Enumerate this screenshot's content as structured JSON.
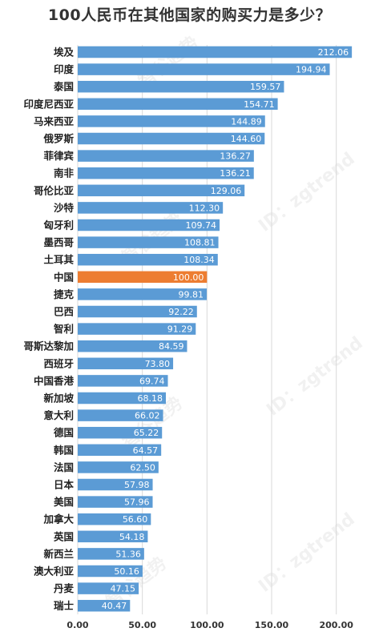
{
  "chart_data": {
    "type": "bar",
    "orientation": "horizontal",
    "title": "100人民币在其他国家的购买力是多少？",
    "categories": [
      "埃及",
      "印度",
      "泰国",
      "印度尼西亚",
      "马来西亚",
      "俄罗斯",
      "菲律宾",
      "南非",
      "哥伦比亚",
      "沙特",
      "匈牙利",
      "墨西哥",
      "土耳其",
      "中国",
      "捷克",
      "巴西",
      "智利",
      "哥斯达黎加",
      "西班牙",
      "中国香港",
      "新加坡",
      "意大利",
      "德国",
      "韩国",
      "法国",
      "日本",
      "美国",
      "加拿大",
      "英国",
      "新西兰",
      "澳大利亚",
      "丹麦",
      "瑞士"
    ],
    "values": [
      212.06,
      194.94,
      159.57,
      154.71,
      144.89,
      144.6,
      136.27,
      136.21,
      129.06,
      112.3,
      109.74,
      108.81,
      108.34,
      100.0,
      99.81,
      92.22,
      91.29,
      84.59,
      73.8,
      69.74,
      68.18,
      66.02,
      65.22,
      64.57,
      62.5,
      57.98,
      57.96,
      56.6,
      54.18,
      51.36,
      50.16,
      47.15,
      40.47
    ],
    "value_labels": [
      "212.06",
      "194.94",
      "159.57",
      "154.71",
      "144.89",
      "144.60",
      "136.27",
      "136.21",
      "129.06",
      "112.30",
      "109.74",
      "108.81",
      "108.34",
      "100.00",
      "99.81",
      "92.22",
      "91.29",
      "84.59",
      "73.80",
      "69.74",
      "68.18",
      "66.02",
      "65.22",
      "64.57",
      "62.50",
      "57.98",
      "57.96",
      "56.60",
      "54.18",
      "51.36",
      "50.16",
      "47.15",
      "40.47"
    ],
    "highlight_category": "中国",
    "xlim": [
      0,
      225
    ],
    "xticks": [
      0,
      50,
      100,
      150,
      200
    ],
    "xtick_labels": [
      "0.00",
      "50.00",
      "100.00",
      "150.00",
      "200.00"
    ],
    "grid": true,
    "colors": {
      "bar": "#5b9bd5",
      "highlight": "#ed7d31",
      "grid": "#d9d9d9"
    }
  },
  "watermarks": [
    "智谷趋势",
    "ID：zgtrend"
  ]
}
